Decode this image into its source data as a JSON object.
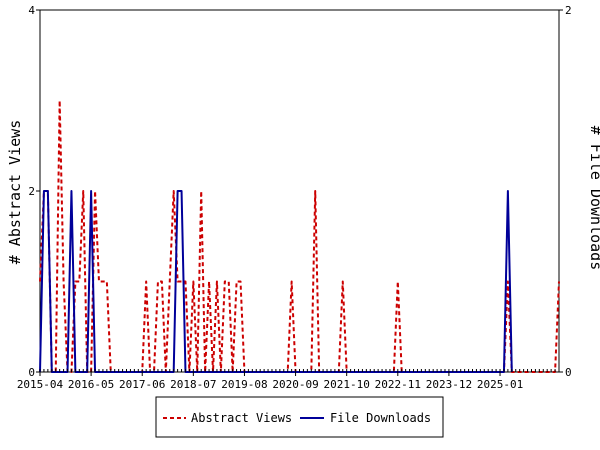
{
  "chart_data": {
    "type": "line",
    "ylabel": "# Abstract Views",
    "y2label": "# File Downloads",
    "x_ticks": [
      "2015-04",
      "2016-05",
      "2017-06",
      "2018-07",
      "2019-08",
      "2020-09",
      "2021-10",
      "2022-11",
      "2023-12",
      "2025-01"
    ],
    "ylim": [
      0,
      4
    ],
    "y_ticks": [
      "0",
      "2",
      "4"
    ],
    "y2lim": [
      0,
      2
    ],
    "y2_ticks": [
      "0",
      "2"
    ],
    "grid": false,
    "legend_position": "bottom-center",
    "x_range": [
      "2015-04",
      "2026-04"
    ],
    "series": [
      {
        "name": "Abstract Views",
        "color": "#cc0000",
        "style": "dashed",
        "axis": "left",
        "points": [
          [
            "2015-04",
            1
          ],
          [
            "2015-05",
            2
          ],
          [
            "2015-06",
            2
          ],
          [
            "2015-07",
            0
          ],
          [
            "2015-08",
            0
          ],
          [
            "2015-09",
            3
          ],
          [
            "2015-10",
            1
          ],
          [
            "2015-11",
            0
          ],
          [
            "2015-12",
            0
          ],
          [
            "2016-01",
            1
          ],
          [
            "2016-02",
            1
          ],
          [
            "2016-03",
            2
          ],
          [
            "2016-04",
            0
          ],
          [
            "2016-05",
            0
          ],
          [
            "2016-06",
            2
          ],
          [
            "2016-07",
            1
          ],
          [
            "2016-08",
            1
          ],
          [
            "2016-09",
            1
          ],
          [
            "2016-10",
            0
          ],
          [
            "2017-06",
            0
          ],
          [
            "2017-07",
            1
          ],
          [
            "2017-08",
            0
          ],
          [
            "2017-09",
            0
          ],
          [
            "2017-10",
            1
          ],
          [
            "2017-11",
            1
          ],
          [
            "2017-12",
            0
          ],
          [
            "2018-01",
            1
          ],
          [
            "2018-02",
            2
          ],
          [
            "2018-03",
            1
          ],
          [
            "2018-04",
            1
          ],
          [
            "2018-05",
            1
          ],
          [
            "2018-06",
            0
          ],
          [
            "2018-07",
            1
          ],
          [
            "2018-08",
            0
          ],
          [
            "2018-09",
            2
          ],
          [
            "2018-10",
            0
          ],
          [
            "2018-11",
            1
          ],
          [
            "2018-12",
            0
          ],
          [
            "2019-01",
            1
          ],
          [
            "2019-02",
            0
          ],
          [
            "2019-03",
            1
          ],
          [
            "2019-04",
            1
          ],
          [
            "2019-05",
            0
          ],
          [
            "2019-06",
            1
          ],
          [
            "2019-07",
            1
          ],
          [
            "2019-08",
            0
          ],
          [
            "2019-09",
            0
          ],
          [
            "2020-07",
            0
          ],
          [
            "2020-08",
            1
          ],
          [
            "2020-09",
            0
          ],
          [
            "2021-01",
            0
          ],
          [
            "2021-02",
            2
          ],
          [
            "2021-03",
            0
          ],
          [
            "2021-08",
            0
          ],
          [
            "2021-09",
            1
          ],
          [
            "2021-10",
            0
          ],
          [
            "2022-10",
            0
          ],
          [
            "2022-11",
            1
          ],
          [
            "2022-12",
            0
          ],
          [
            "2025-02",
            0
          ],
          [
            "2025-03",
            1
          ],
          [
            "2025-04",
            0
          ],
          [
            "2026-03",
            0
          ],
          [
            "2026-04",
            1
          ]
        ]
      },
      {
        "name": "File Downloads",
        "color": "#000099",
        "style": "solid",
        "axis": "right",
        "points": [
          [
            "2015-04",
            0
          ],
          [
            "2015-05",
            1
          ],
          [
            "2015-06",
            1
          ],
          [
            "2015-07",
            0
          ],
          [
            "2015-11",
            0
          ],
          [
            "2015-12",
            1
          ],
          [
            "2016-01",
            0
          ],
          [
            "2016-04",
            0
          ],
          [
            "2016-05",
            1
          ],
          [
            "2016-06",
            0
          ],
          [
            "2018-02",
            0
          ],
          [
            "2018-03",
            1
          ],
          [
            "2018-04",
            1
          ],
          [
            "2018-05",
            0
          ],
          [
            "2025-02",
            0
          ],
          [
            "2025-03",
            1
          ],
          [
            "2025-04",
            0
          ]
        ]
      }
    ]
  }
}
